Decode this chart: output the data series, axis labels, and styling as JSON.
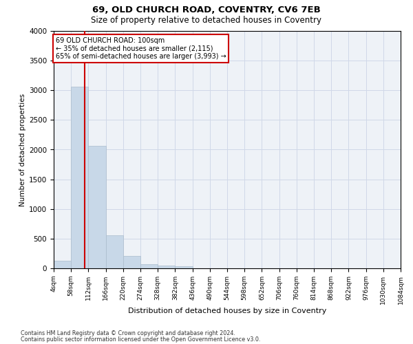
{
  "title1": "69, OLD CHURCH ROAD, COVENTRY, CV6 7EB",
  "title2": "Size of property relative to detached houses in Coventry",
  "xlabel": "Distribution of detached houses by size in Coventry",
  "ylabel": "Number of detached properties",
  "annotation_line1": "69 OLD CHURCH ROAD: 100sqm",
  "annotation_line2": "← 35% of detached houses are smaller (2,115)",
  "annotation_line3": "65% of semi-detached houses are larger (3,993) →",
  "property_size": 100,
  "bin_edges": [
    4,
    58,
    112,
    166,
    220,
    274,
    328,
    382,
    436,
    490,
    544,
    598,
    652,
    706,
    760,
    814,
    868,
    922,
    976,
    1030,
    1084
  ],
  "bar_heights": [
    130,
    3060,
    2060,
    560,
    210,
    75,
    50,
    40,
    0,
    0,
    0,
    0,
    0,
    0,
    0,
    0,
    0,
    0,
    0,
    0
  ],
  "bar_color": "#c8d8e8",
  "bar_edgecolor": "#aabccc",
  "line_color": "#cc0000",
  "grid_color": "#d0d8e8",
  "background_color": "#eef2f7",
  "ylim": [
    0,
    4000
  ],
  "yticks": [
    0,
    500,
    1000,
    1500,
    2000,
    2500,
    3000,
    3500,
    4000
  ],
  "footer1": "Contains HM Land Registry data © Crown copyright and database right 2024.",
  "footer2": "Contains public sector information licensed under the Open Government Licence v3.0."
}
